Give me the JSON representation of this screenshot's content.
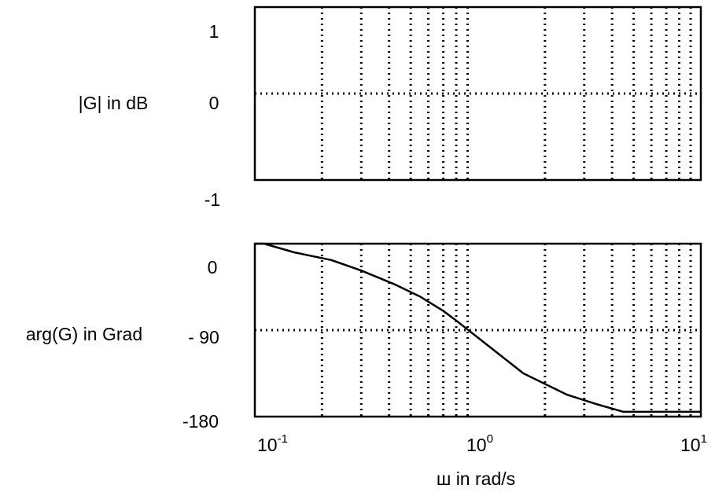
{
  "chart_data": [
    {
      "type": "line",
      "name": "magnitude",
      "ylabel": "|G| in dB",
      "ylim": [
        -1,
        1
      ],
      "yticks": [
        {
          "value": 1,
          "label": "1"
        },
        {
          "value": 0,
          "label": "0"
        },
        {
          "value": -1,
          "label": "-1"
        }
      ],
      "xscale": "log",
      "xlim": [
        0.1,
        10
      ],
      "grid": "dotted",
      "hlines": [
        0
      ],
      "series": []
    },
    {
      "type": "line",
      "name": "phase",
      "ylabel": "arg(G) in Grad",
      "ylim": [
        -180,
        0
      ],
      "yticks": [
        {
          "value": 0,
          "label": "0"
        },
        {
          "value": -90,
          "label": "- 90"
        },
        {
          "value": -180,
          "label": "-180"
        }
      ],
      "xscale": "log",
      "xlim": [
        0.1,
        10
      ],
      "xlabel": "ш in rad/s",
      "xticks": [
        {
          "value": 0.1,
          "base": "10",
          "exp": "-1"
        },
        {
          "value": 1,
          "base": "10",
          "exp": "0"
        },
        {
          "value": 10,
          "base": "10",
          "exp": "1"
        }
      ],
      "grid": "dotted",
      "hlines": [
        -90
      ],
      "series": [
        {
          "x": [
            0.1,
            0.11,
            0.15,
            0.22,
            0.3,
            0.42,
            0.55,
            0.7,
            0.8,
            1.6,
            2.5,
            3.4,
            4.5,
            7,
            10
          ],
          "y": [
            0,
            0,
            -9,
            -17,
            -28,
            -42,
            -55,
            -70,
            -80,
            -135,
            -157,
            -167,
            -175,
            -175,
            -175
          ]
        }
      ]
    }
  ],
  "colors": {
    "line": "#000000",
    "grid": "#000000",
    "background": "#ffffff"
  }
}
